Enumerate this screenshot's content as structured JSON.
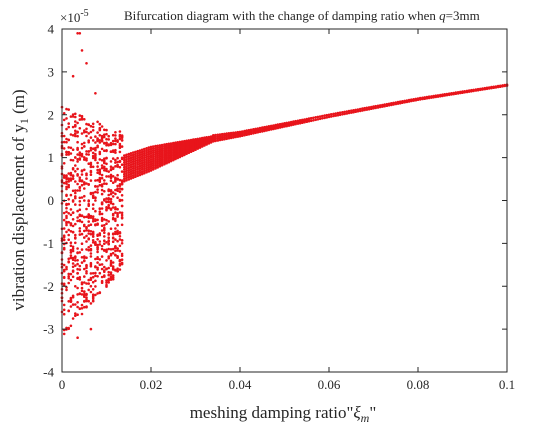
{
  "chart_data": {
    "type": "scatter",
    "title_prefix": "Bifurcation diagram with the change of damping ratio when ",
    "title_var": "q",
    "title_suffix": "=3mm",
    "exponent_label": "×10",
    "exponent_power": "-5",
    "xlabel": "meshing damping ratio\"ξm\"",
    "xlabel_prefix": "meshing damping ratio\"",
    "xlabel_var": "ξ",
    "xlabel_sub": "m",
    "xlabel_suffix": "\"",
    "ylabel": "vibration displacement of y1 (m)",
    "ylabel_prefix": "vibration displacement of y",
    "ylabel_sub": "1",
    "ylabel_suffix": " (m)",
    "xlim": [
      0,
      0.1
    ],
    "ylim": [
      -4,
      4
    ],
    "y_scale_note": "y values in units of 1e-5 m",
    "x_ticks": [
      "0",
      "0.02",
      "0.04",
      "0.06",
      "0.08",
      "0.1"
    ],
    "x_tick_values": [
      0,
      0.02,
      0.04,
      0.06,
      0.08,
      0.1
    ],
    "y_ticks": [
      "4",
      "3",
      "2",
      "1",
      "0",
      "-1",
      "-2",
      "-3",
      "-4"
    ],
    "y_tick_values": [
      4,
      3,
      2,
      1,
      0,
      -1,
      -2,
      -3,
      -4
    ],
    "grid": false,
    "marker_color": "#e8141b",
    "series": [
      {
        "regime": "chaotic",
        "x_range": [
          0.0,
          0.0135
        ],
        "x_step": 0.0005,
        "points_per_x": 34,
        "y_range_at_start": [
          -3.2,
          2.2
        ],
        "y_range_at_end": [
          -1.6,
          1.6
        ],
        "extreme_points": [
          [
            0.0035,
            3.9
          ],
          [
            0.004,
            3.9
          ],
          [
            0.0045,
            3.5
          ],
          [
            0.0055,
            3.2
          ],
          [
            0.0025,
            2.9
          ],
          [
            0.0075,
            2.5
          ],
          [
            0.0035,
            -3.2
          ],
          [
            0.0065,
            -3.0
          ]
        ]
      },
      {
        "regime": "multi-periodic",
        "x_range": [
          0.014,
          0.034
        ],
        "x_step": 0.0005,
        "points_per_x": 12,
        "upper_bound": [
          [
            0.014,
            1.05
          ],
          [
            0.02,
            1.25
          ],
          [
            0.034,
            1.5
          ]
        ],
        "lower_bound": [
          [
            0.014,
            0.45
          ],
          [
            0.02,
            0.7
          ],
          [
            0.034,
            1.38
          ]
        ]
      },
      {
        "regime": "periodic",
        "x_range": [
          0.034,
          0.1
        ],
        "x_step": 0.0005,
        "band": [
          [
            0.034,
            1.38,
            1.52
          ],
          [
            0.04,
            1.5,
            1.6
          ],
          [
            0.06,
            1.95,
            2.0
          ],
          [
            0.08,
            2.35,
            2.38
          ],
          [
            0.1,
            2.68,
            2.7
          ]
        ]
      }
    ]
  }
}
